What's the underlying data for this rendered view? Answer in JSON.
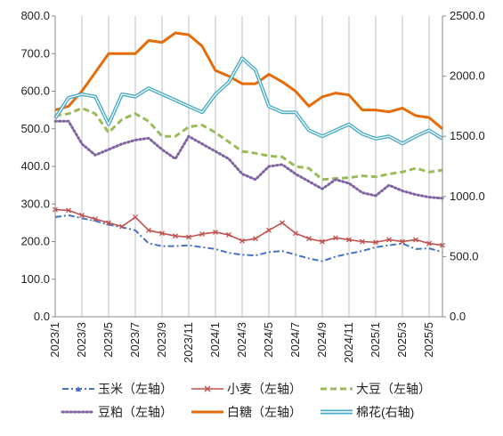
{
  "chart_data": {
    "type": "line",
    "title": "",
    "xlabel": "",
    "ylabel_left": "",
    "ylabel_right": "",
    "ylim_left": [
      0,
      800
    ],
    "ylim_right": [
      0,
      2500
    ],
    "yticks_left": [
      "0.0",
      "100.0",
      "200.0",
      "300.0",
      "400.0",
      "500.0",
      "600.0",
      "700.0",
      "800.0"
    ],
    "yticks_right": [
      "0.0",
      "500.0",
      "1000.0",
      "1500.0",
      "2000.0",
      "2500.0"
    ],
    "x_range": [
      "2023-01",
      "2025-06"
    ],
    "xticks": [
      "2023/1",
      "2023/3",
      "2023/5",
      "2023/7",
      "2023/9",
      "2023/11",
      "2024/1",
      "2024/3",
      "2024/5",
      "2024/7",
      "2024/9",
      "2024/11",
      "2025/1",
      "2025/3",
      "2025/5"
    ],
    "grid": "vertical",
    "legend_position": "bottom",
    "x": [
      "2023-01",
      "2023-02",
      "2023-03",
      "2023-04",
      "2023-05",
      "2023-06",
      "2023-07",
      "2023-08",
      "2023-09",
      "2023-10",
      "2023-11",
      "2023-12",
      "2024-01",
      "2024-02",
      "2024-03",
      "2024-04",
      "2024-05",
      "2024-06",
      "2024-07",
      "2024-08",
      "2024-09",
      "2024-10",
      "2024-11",
      "2024-12",
      "2025-01",
      "2025-02",
      "2025-03",
      "2025-04",
      "2025-05",
      "2025-06"
    ],
    "series": [
      {
        "name": "玉米（左轴）",
        "axis": "left",
        "color": "#4472C4",
        "style": "dashdot",
        "values": [
          265,
          270,
          262,
          255,
          245,
          238,
          230,
          195,
          188,
          188,
          190,
          185,
          180,
          170,
          165,
          163,
          172,
          175,
          165,
          155,
          148,
          160,
          168,
          175,
          185,
          190,
          195,
          180,
          182,
          172
        ]
      },
      {
        "name": "小麦（左轴）",
        "axis": "left",
        "color": "#C0504D",
        "style": "cross",
        "values": [
          285,
          283,
          270,
          260,
          250,
          240,
          265,
          230,
          222,
          215,
          212,
          220,
          225,
          218,
          202,
          208,
          230,
          250,
          222,
          208,
          200,
          210,
          205,
          200,
          198,
          205,
          200,
          205,
          195,
          190
        ]
      },
      {
        "name": "大豆（左轴）",
        "axis": "left",
        "color": "#9BBB59",
        "style": "dashed",
        "values": [
          535,
          540,
          555,
          540,
          490,
          525,
          540,
          520,
          480,
          480,
          505,
          510,
          490,
          465,
          440,
          435,
          428,
          425,
          400,
          395,
          365,
          368,
          370,
          375,
          372,
          380,
          385,
          395,
          385,
          390
        ]
      },
      {
        "name": "豆粕（左轴）",
        "axis": "left",
        "color": "#8064A2",
        "style": "dotted",
        "values": [
          520,
          520,
          460,
          430,
          445,
          460,
          470,
          475,
          445,
          420,
          480,
          460,
          440,
          420,
          380,
          365,
          400,
          405,
          380,
          360,
          340,
          365,
          355,
          330,
          322,
          350,
          335,
          325,
          318,
          315
        ]
      },
      {
        "name": "白糖（左轴）",
        "axis": "left",
        "color": "#E46C0A",
        "style": "solid",
        "values": [
          550,
          560,
          600,
          650,
          700,
          700,
          700,
          735,
          730,
          755,
          750,
          720,
          655,
          640,
          620,
          620,
          645,
          625,
          600,
          560,
          585,
          595,
          590,
          550,
          550,
          545,
          555,
          535,
          530,
          500
        ]
      },
      {
        "name": "棉花(右轴)",
        "axis": "right",
        "color": "#4BACC6",
        "style": "double",
        "values": [
          1650,
          1820,
          1850,
          1830,
          1600,
          1850,
          1830,
          1900,
          1850,
          1800,
          1750,
          1700,
          1850,
          1950,
          2150,
          2050,
          1750,
          1700,
          1700,
          1550,
          1500,
          1550,
          1600,
          1520,
          1480,
          1500,
          1440,
          1500,
          1550,
          1480
        ]
      }
    ]
  }
}
